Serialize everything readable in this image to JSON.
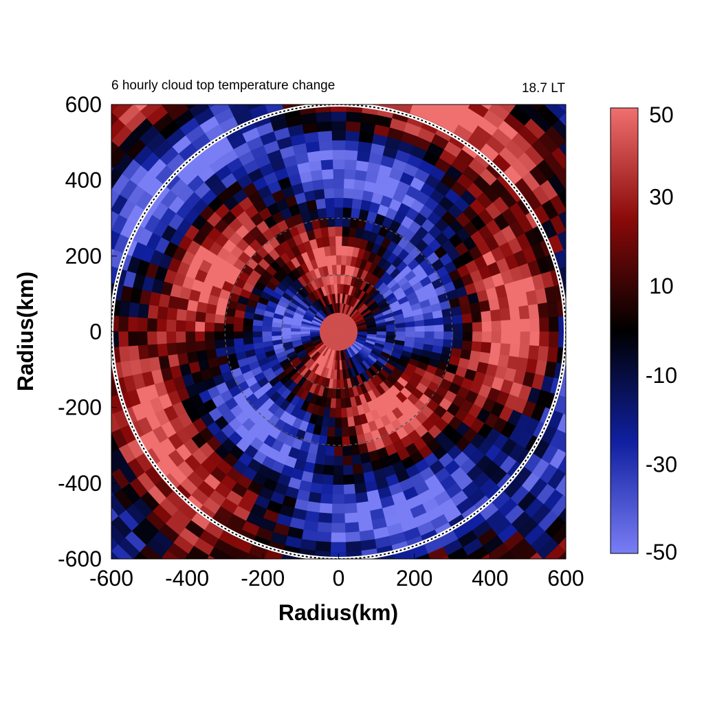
{
  "chart_data": {
    "type": "heatmap",
    "title": "6 hourly cloud top temperature change",
    "time_label": "18.7 LT",
    "xlabel": "Radius(km)",
    "ylabel": "Radius(km)",
    "xlim": [
      -600,
      600
    ],
    "ylim": [
      -600,
      600
    ],
    "x_ticks": [
      "-600",
      "-400",
      "-200",
      "0",
      "200",
      "400",
      "600"
    ],
    "y_ticks": [
      "600",
      "400",
      "200",
      "0",
      "-200",
      "-400",
      "-600"
    ],
    "colorbar": {
      "range": [
        -50,
        50
      ],
      "ticks": [
        "50",
        "30",
        "10",
        "-10",
        "-30",
        "-50"
      ],
      "low_color": "#7a7ef5",
      "mid_color": "#000000",
      "high_color": "#f07070"
    },
    "reference_circles_km": [
      150,
      300,
      600
    ],
    "grid": false,
    "legend": "colorbar right",
    "field_description": "spiral bands of alternating warming (red) and cooling (blue) around a warm core near the center"
  }
}
